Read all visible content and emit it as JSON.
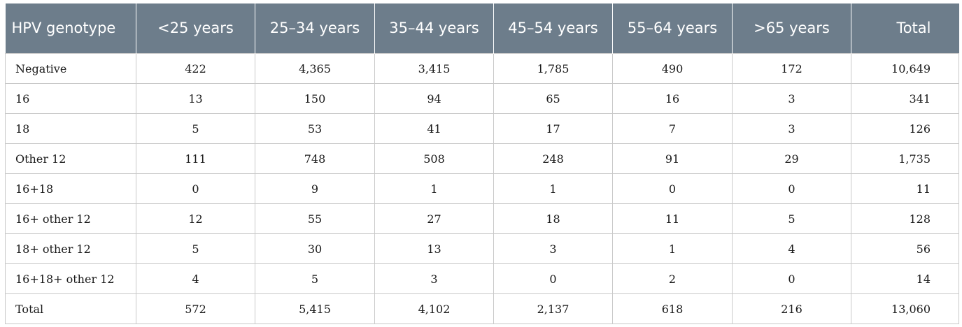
{
  "columns": [
    "HPV genotype",
    "<25 years",
    "25–34 years",
    "35–44 years",
    "45–54 years",
    "55–64 years",
    ">65 years",
    "Total"
  ],
  "rows": [
    {
      "label": "Negative",
      "values": [
        "422",
        "4,365",
        "3,415",
        "1,785",
        "490",
        "172",
        "10,649"
      ]
    },
    {
      "label": "16",
      "values": [
        "13",
        "150",
        "94",
        "65",
        "16",
        "3",
        "341"
      ]
    },
    {
      "label": "18",
      "values": [
        "5",
        "53",
        "41",
        "17",
        "7",
        "3",
        "126"
      ]
    },
    {
      "label": "Other 12",
      "values": [
        "111",
        "748",
        "508",
        "248",
        "91",
        "29",
        "1,735"
      ]
    },
    {
      "label": "16+18",
      "values": [
        "0",
        "9",
        "1",
        "1",
        "0",
        "0",
        "11"
      ]
    },
    {
      "label": "16+ other 12",
      "values": [
        "12",
        "55",
        "27",
        "18",
        "11",
        "5",
        "128"
      ]
    },
    {
      "label": "18+ other 12",
      "values": [
        "5",
        "30",
        "13",
        "3",
        "1",
        "4",
        "56"
      ]
    },
    {
      "label": "16+18+ other 12",
      "values": [
        "4",
        "5",
        "3",
        "0",
        "2",
        "0",
        "14"
      ]
    },
    {
      "label": "Total",
      "values": [
        "572",
        "5,415",
        "4,102",
        "2,137",
        "618",
        "216",
        "13,060"
      ]
    }
  ]
}
